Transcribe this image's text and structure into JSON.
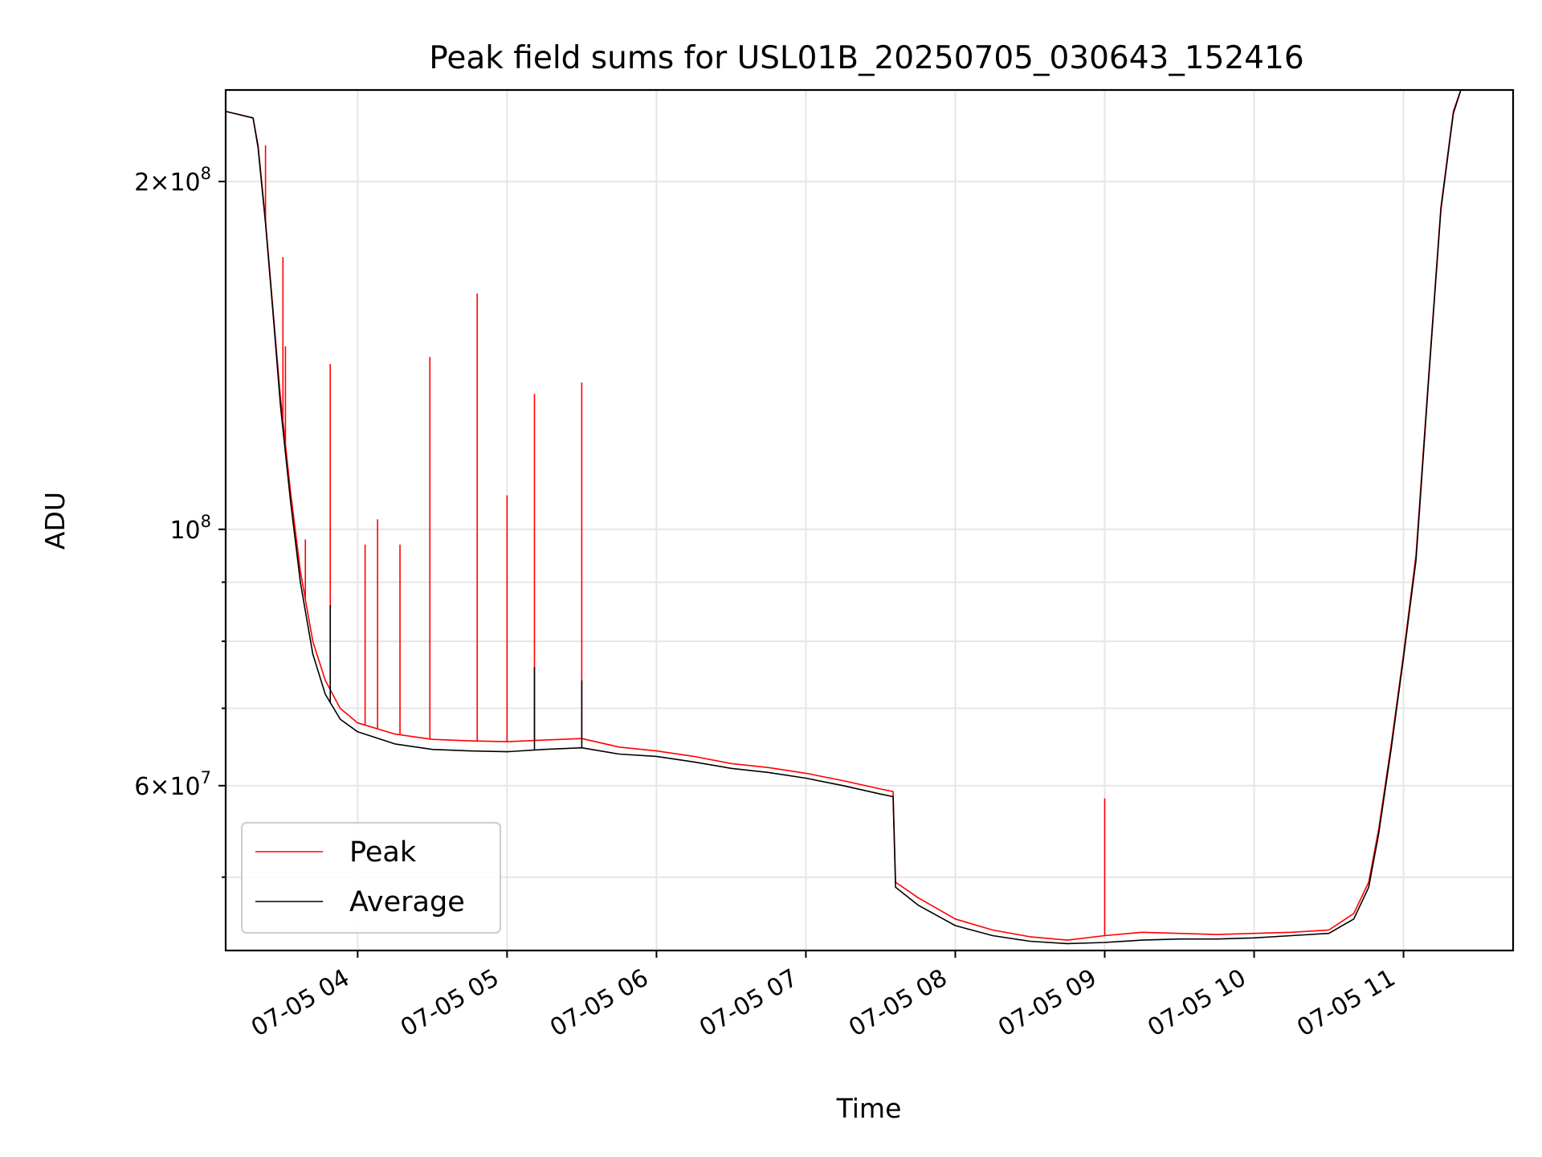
{
  "chart_data": {
    "type": "line",
    "title": "Peak field sums for USL01B_20250705_030643_152416",
    "xlabel": "Time",
    "ylabel": "ADU",
    "x_range": [
      "2025-07-05 03:07",
      "2025-07-05 11:44"
    ],
    "ylim": [
      43200000,
      240000000
    ],
    "yscale": "log",
    "grid": true,
    "legend_position": "lower left",
    "x_ticks": [
      {
        "time": "2025-07-05 04:00",
        "label": "07-05 04"
      },
      {
        "time": "2025-07-05 05:00",
        "label": "07-05 05"
      },
      {
        "time": "2025-07-05 06:00",
        "label": "07-05 06"
      },
      {
        "time": "2025-07-05 07:00",
        "label": "07-05 07"
      },
      {
        "time": "2025-07-05 08:00",
        "label": "07-05 08"
      },
      {
        "time": "2025-07-05 09:00",
        "label": "07-05 09"
      },
      {
        "time": "2025-07-05 10:00",
        "label": "07-05 10"
      },
      {
        "time": "2025-07-05 11:00",
        "label": "07-05 11"
      }
    ],
    "y_ticks_major": [
      {
        "value": 60000000,
        "label_mantissa": "6×10",
        "label_exp": "7"
      },
      {
        "value": 100000000,
        "label_mantissa": "10",
        "label_exp": "8"
      },
      {
        "value": 200000000,
        "label_mantissa": "2×10",
        "label_exp": "8"
      }
    ],
    "y_ticks_minor": [
      50000000,
      70000000,
      80000000,
      90000000
    ],
    "series": [
      {
        "name": "Peak",
        "color": "#ff0000",
        "points": [
          [
            "2025-07-05 03:07",
            230000000
          ],
          [
            "2025-07-05 03:18",
            227000000
          ],
          [
            "2025-07-05 03:20",
            215000000
          ],
          [
            "2025-07-05 03:23",
            185000000
          ],
          [
            "2025-07-05 03:26",
            155000000
          ],
          [
            "2025-07-05 03:29",
            130000000
          ],
          [
            "2025-07-05 03:33",
            108000000
          ],
          [
            "2025-07-05 03:37",
            92000000
          ],
          [
            "2025-07-05 03:42",
            80000000
          ],
          [
            "2025-07-05 03:47",
            74000000
          ],
          [
            "2025-07-05 03:53",
            70000000
          ],
          [
            "2025-07-05 04:00",
            68000000
          ],
          [
            "2025-07-05 04:15",
            66500000
          ],
          [
            "2025-07-05 04:30",
            65800000
          ],
          [
            "2025-07-05 04:45",
            65600000
          ],
          [
            "2025-07-05 05:00",
            65500000
          ],
          [
            "2025-07-05 05:15",
            65700000
          ],
          [
            "2025-07-05 05:30",
            65900000
          ],
          [
            "2025-07-05 05:45",
            64800000
          ],
          [
            "2025-07-05 06:00",
            64300000
          ],
          [
            "2025-07-05 06:15",
            63600000
          ],
          [
            "2025-07-05 06:30",
            62700000
          ],
          [
            "2025-07-05 06:45",
            62200000
          ],
          [
            "2025-07-05 07:00",
            61500000
          ],
          [
            "2025-07-05 07:15",
            60600000
          ],
          [
            "2025-07-05 07:30",
            59600000
          ],
          [
            "2025-07-05 07:35",
            59300000
          ],
          [
            "2025-07-05 07:36",
            49500000
          ],
          [
            "2025-07-05 07:45",
            48000000
          ],
          [
            "2025-07-05 08:00",
            46000000
          ],
          [
            "2025-07-05 08:15",
            45000000
          ],
          [
            "2025-07-05 08:30",
            44400000
          ],
          [
            "2025-07-05 08:45",
            44100000
          ],
          [
            "2025-07-05 09:00",
            44500000
          ],
          [
            "2025-07-05 09:15",
            44800000
          ],
          [
            "2025-07-05 09:30",
            44700000
          ],
          [
            "2025-07-05 09:45",
            44600000
          ],
          [
            "2025-07-05 10:00",
            44700000
          ],
          [
            "2025-07-05 10:15",
            44800000
          ],
          [
            "2025-07-05 10:30",
            45000000
          ],
          [
            "2025-07-05 10:40",
            46500000
          ],
          [
            "2025-07-05 10:46",
            49500000
          ],
          [
            "2025-07-05 10:50",
            55000000
          ],
          [
            "2025-07-05 10:55",
            65000000
          ],
          [
            "2025-07-05 11:00",
            78000000
          ],
          [
            "2025-07-05 11:05",
            95000000
          ],
          [
            "2025-07-05 11:10",
            135000000
          ],
          [
            "2025-07-05 11:15",
            190000000
          ],
          [
            "2025-07-05 11:20",
            230000000
          ],
          [
            "2025-07-05 11:23",
            240000000
          ]
        ],
        "spikes": [
          [
            "2025-07-05 03:23",
            215000000
          ],
          [
            "2025-07-05 03:30",
            172000000
          ],
          [
            "2025-07-05 03:31",
            144000000
          ],
          [
            "2025-07-05 03:39",
            98000000
          ],
          [
            "2025-07-05 03:49",
            139000000
          ],
          [
            "2025-07-05 04:03",
            97000000
          ],
          [
            "2025-07-05 04:08",
            102000000
          ],
          [
            "2025-07-05 04:17",
            97000000
          ],
          [
            "2025-07-05 04:29",
            141000000
          ],
          [
            "2025-07-05 04:48",
            160000000
          ],
          [
            "2025-07-05 05:00",
            107000000
          ],
          [
            "2025-07-05 05:11",
            131000000
          ],
          [
            "2025-07-05 05:30",
            134000000
          ],
          [
            "2025-07-05 09:00",
            58500000
          ]
        ]
      },
      {
        "name": "Average",
        "color": "#000000",
        "points": [
          [
            "2025-07-05 03:07",
            230000000
          ],
          [
            "2025-07-05 03:18",
            227000000
          ],
          [
            "2025-07-05 03:20",
            214000000
          ],
          [
            "2025-07-05 03:23",
            184000000
          ],
          [
            "2025-07-05 03:26",
            154000000
          ],
          [
            "2025-07-05 03:29",
            128000000
          ],
          [
            "2025-07-05 03:33",
            106000000
          ],
          [
            "2025-07-05 03:37",
            90000000
          ],
          [
            "2025-07-05 03:42",
            78000000
          ],
          [
            "2025-07-05 03:47",
            72000000
          ],
          [
            "2025-07-05 03:53",
            68500000
          ],
          [
            "2025-07-05 04:00",
            66800000
          ],
          [
            "2025-07-05 04:15",
            65200000
          ],
          [
            "2025-07-05 04:30",
            64500000
          ],
          [
            "2025-07-05 04:45",
            64300000
          ],
          [
            "2025-07-05 05:00",
            64200000
          ],
          [
            "2025-07-05 05:15",
            64500000
          ],
          [
            "2025-07-05 05:30",
            64700000
          ],
          [
            "2025-07-05 05:45",
            63900000
          ],
          [
            "2025-07-05 06:00",
            63600000
          ],
          [
            "2025-07-05 06:15",
            62900000
          ],
          [
            "2025-07-05 06:30",
            62100000
          ],
          [
            "2025-07-05 06:45",
            61600000
          ],
          [
            "2025-07-05 07:00",
            60900000
          ],
          [
            "2025-07-05 07:15",
            60000000
          ],
          [
            "2025-07-05 07:30",
            59000000
          ],
          [
            "2025-07-05 07:35",
            58700000
          ],
          [
            "2025-07-05 07:36",
            49000000
          ],
          [
            "2025-07-05 07:45",
            47300000
          ],
          [
            "2025-07-05 08:00",
            45400000
          ],
          [
            "2025-07-05 08:15",
            44500000
          ],
          [
            "2025-07-05 08:30",
            44000000
          ],
          [
            "2025-07-05 08:45",
            43800000
          ],
          [
            "2025-07-05 09:00",
            43900000
          ],
          [
            "2025-07-05 09:15",
            44100000
          ],
          [
            "2025-07-05 09:30",
            44200000
          ],
          [
            "2025-07-05 09:45",
            44200000
          ],
          [
            "2025-07-05 10:00",
            44300000
          ],
          [
            "2025-07-05 10:15",
            44500000
          ],
          [
            "2025-07-05 10:30",
            44700000
          ],
          [
            "2025-07-05 10:40",
            46000000
          ],
          [
            "2025-07-05 10:46",
            49000000
          ],
          [
            "2025-07-05 10:50",
            54500000
          ],
          [
            "2025-07-05 10:55",
            64500000
          ],
          [
            "2025-07-05 11:00",
            77500000
          ],
          [
            "2025-07-05 11:05",
            94000000
          ],
          [
            "2025-07-05 11:10",
            134000000
          ],
          [
            "2025-07-05 11:15",
            189000000
          ],
          [
            "2025-07-05 11:20",
            229000000
          ],
          [
            "2025-07-05 11:23",
            240000000
          ]
        ],
        "spikes": [
          [
            "2025-07-05 03:49",
            86000000
          ],
          [
            "2025-07-05 05:11",
            76000000
          ],
          [
            "2025-07-05 05:30",
            74000000
          ]
        ]
      }
    ]
  }
}
